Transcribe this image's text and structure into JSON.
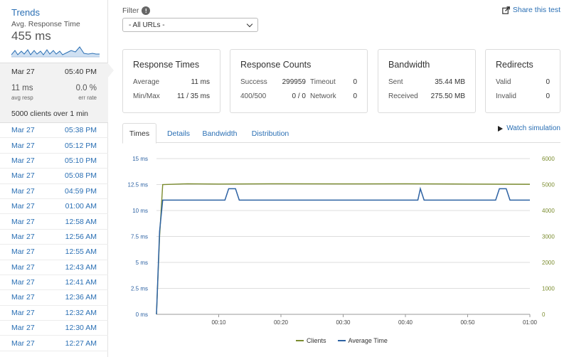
{
  "sidebar": {
    "trends_title": "Trends",
    "avg_label": "Avg. Response Time",
    "avg_value": "455 ms",
    "selected": {
      "date": "Mar 27",
      "time": "05:40 PM",
      "avg_resp_value": "11 ms",
      "avg_resp_label": "avg resp",
      "err_rate_value": "0.0 %",
      "err_rate_label": "err rate",
      "clients_prefix": "5000 clients over ",
      "clients_duration": "1 min"
    },
    "runs": [
      {
        "date": "Mar 27",
        "time": "05:38 PM"
      },
      {
        "date": "Mar 27",
        "time": "05:12 PM"
      },
      {
        "date": "Mar 27",
        "time": "05:10 PM"
      },
      {
        "date": "Mar 27",
        "time": "05:08 PM"
      },
      {
        "date": "Mar 27",
        "time": "04:59 PM"
      },
      {
        "date": "Mar 27",
        "time": "01:00 AM"
      },
      {
        "date": "Mar 27",
        "time": "12:58 AM"
      },
      {
        "date": "Mar 27",
        "time": "12:56 AM"
      },
      {
        "date": "Mar 27",
        "time": "12:55 AM"
      },
      {
        "date": "Mar 27",
        "time": "12:43 AM"
      },
      {
        "date": "Mar 27",
        "time": "12:41 AM"
      },
      {
        "date": "Mar 27",
        "time": "12:36 AM"
      },
      {
        "date": "Mar 27",
        "time": "12:32 AM"
      },
      {
        "date": "Mar 27",
        "time": "12:30 AM"
      },
      {
        "date": "Mar 27",
        "time": "12:27 AM"
      }
    ]
  },
  "filter": {
    "label": "Filter",
    "info_icon": "!",
    "selected": "- All URLs -"
  },
  "share_label": "Share this test",
  "cards": {
    "response_times": {
      "title": "Response Times",
      "average_label": "Average",
      "average_value": "11 ms",
      "minmax_label": "Min/Max",
      "minmax_value": "11 / 35 ms"
    },
    "response_counts": {
      "title": "Response Counts",
      "success_label": "Success",
      "success_value": "299959",
      "timeout_label": "Timeout",
      "timeout_value": "0",
      "r400_label": "400/500",
      "r400_value": "0 / 0",
      "network_label": "Network",
      "network_value": "0"
    },
    "bandwidth": {
      "title": "Bandwidth",
      "sent_label": "Sent",
      "sent_value": "35.44 MB",
      "received_label": "Received",
      "received_value": "275.50 MB"
    },
    "redirects": {
      "title": "Redirects",
      "valid_label": "Valid",
      "valid_value": "0",
      "invalid_label": "Invalid",
      "invalid_value": "0"
    }
  },
  "tabs": [
    "Times",
    "Details",
    "Bandwidth",
    "Distribution"
  ],
  "watch_label": "Watch simulation",
  "colors": {
    "link": "#2a6fb4",
    "clients": "#7b8c2f",
    "average_time": "#2d62a3"
  },
  "chart_data": {
    "type": "line",
    "x_ticks": [
      "00:10",
      "00:20",
      "00:30",
      "00:40",
      "00:50",
      "01:00"
    ],
    "x_range_seconds": [
      0,
      60
    ],
    "y_left": {
      "ticks": [
        "0 ms",
        "2.5 ms",
        "5 ms",
        "7.5 ms",
        "10 ms",
        "12.5 ms",
        "15 ms"
      ],
      "range": [
        0,
        15
      ]
    },
    "y_right": {
      "ticks": [
        "0",
        "1000",
        "2000",
        "3000",
        "4000",
        "5000",
        "6000"
      ],
      "range": [
        0,
        6000
      ]
    },
    "grid": true,
    "legend_position": "bottom",
    "series": [
      {
        "name": "Clients",
        "axis": "right",
        "x": [
          0,
          0.5,
          1,
          5,
          10,
          20,
          30,
          40,
          50,
          60
        ],
        "y": [
          0,
          3000,
          5000,
          5030,
          5020,
          5030,
          5025,
          5030,
          5020,
          5010
        ]
      },
      {
        "name": "Average Time",
        "axis": "left",
        "x": [
          0,
          0.5,
          1,
          11,
          11.6,
          12.7,
          13.3,
          42,
          42.4,
          43,
          54.5,
          55.1,
          56.2,
          56.8,
          60
        ],
        "y": [
          0,
          8,
          11,
          11,
          12.1,
          12.1,
          11,
          11,
          12.1,
          11,
          11,
          12.1,
          12.1,
          11,
          11
        ]
      }
    ]
  }
}
